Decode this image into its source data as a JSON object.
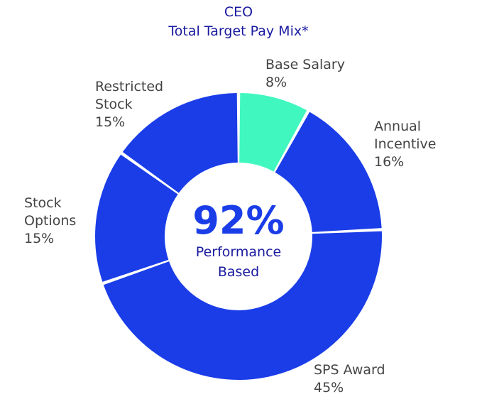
{
  "chart_data": {
    "type": "pie",
    "title": "CEO",
    "subtitle": "Total Target Pay Mix*",
    "donut": true,
    "categories": [
      "Base Salary",
      "Annual Incentive",
      "SPS Award",
      "Stock Options",
      "Restricted Stock"
    ],
    "values": [
      8,
      16,
      45,
      15,
      15
    ],
    "value_labels": [
      "8%",
      "16%",
      "45%",
      "15%",
      "15%"
    ],
    "label_lines": [
      [
        "Base Salary"
      ],
      [
        "Annual",
        "Incentive"
      ],
      [
        "SPS Award"
      ],
      [
        "Stock",
        "Options"
      ],
      [
        "Restricted",
        "Stock"
      ]
    ],
    "colors": [
      "#40f7bf",
      "#1a3de8",
      "#1a3de8",
      "#1a3de8",
      "#1a3de8"
    ],
    "center_text": {
      "value": "92%",
      "line1": "Performance",
      "line2": "Based"
    }
  }
}
